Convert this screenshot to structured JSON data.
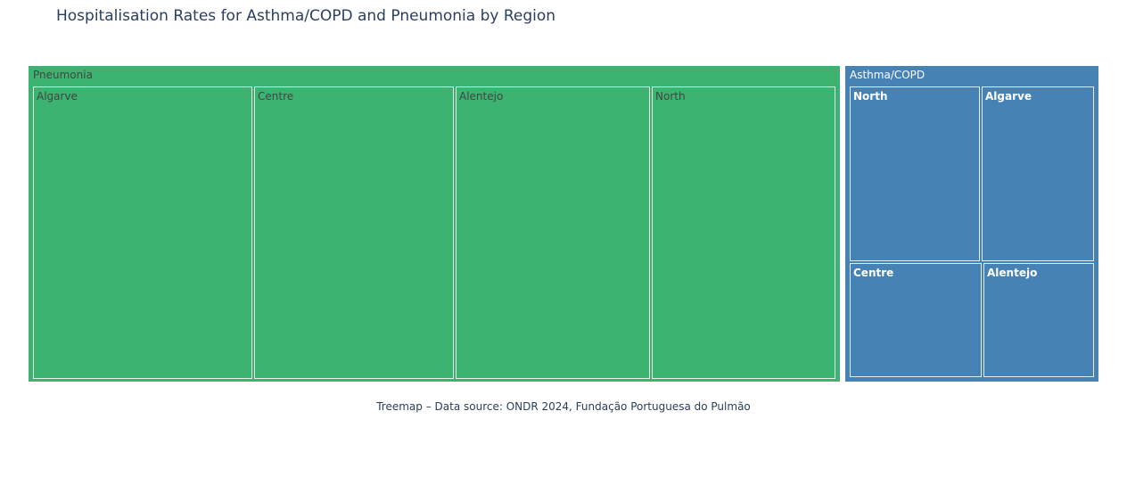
{
  "title": "Hospitalisation Rates for Asthma/COPD and Pneumonia by Region",
  "caption": "Treemap – Data source: ONDR 2024, Fundação Portuguesa do Pulmão",
  "colors": {
    "Pneumonia": "#3cb371",
    "Asthma/COPD": "#4682b4",
    "Pneumonia_text": "#444444",
    "Asthma/COPD_text": "#ffffff"
  },
  "chart_data": {
    "type": "treemap",
    "title": "Hospitalisation Rates for Asthma/COPD and Pneumonia by Region",
    "groups": [
      {
        "name": "Pneumonia",
        "children": [
          {
            "name": "Algarve",
            "value": 257
          },
          {
            "name": "Centre",
            "value": 234
          },
          {
            "name": "Alentejo",
            "value": 228
          },
          {
            "name": "North",
            "value": 214
          }
        ]
      },
      {
        "name": "Asthma/COPD",
        "children": [
          {
            "name": "North",
            "value": 95
          },
          {
            "name": "Algarve",
            "value": 82
          },
          {
            "name": "Centre",
            "value": 63
          },
          {
            "name": "Alentejo",
            "value": 53
          }
        ]
      }
    ]
  }
}
